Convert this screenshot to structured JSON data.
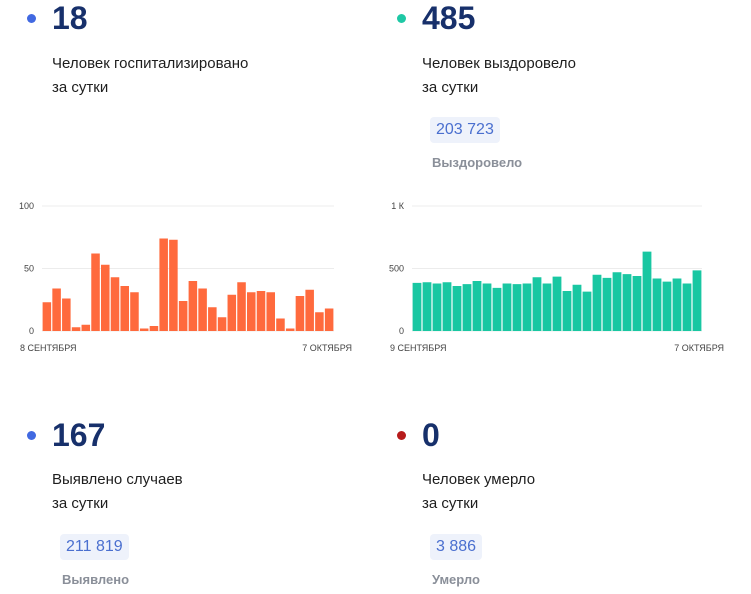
{
  "cards": [
    {
      "value": "18",
      "desc_line1": "Человек госпитализировано",
      "desc_line2": "за сутки",
      "dot_color": "#4169e1"
    },
    {
      "value": "485",
      "desc_line1": "Человек выздоровело",
      "desc_line2": "за сутки",
      "dot_color": "#1ec8a5",
      "total": "203 723",
      "total_label": "Выздоровело"
    },
    {
      "value": "167",
      "desc_line1": "Выявлено случаев",
      "desc_line2": "за сутки",
      "dot_color": "#4169e1",
      "total": "211 819",
      "total_label": "Выявлено"
    },
    {
      "value": "0",
      "desc_line1": "Человек умерло",
      "desc_line2": "за сутки",
      "dot_color": "#b71c1c",
      "total": "3 886",
      "total_label": "Умерло"
    }
  ],
  "chart_data": [
    {
      "type": "bar",
      "color": "#ff6a3d",
      "ylim": [
        0,
        100
      ],
      "yticks": [
        "100",
        "50",
        "0"
      ],
      "x_start_label": "8 СЕНТЯБРЯ",
      "x_end_label": "7 ОКТЯБРЯ",
      "values": [
        23,
        34,
        26,
        3,
        5,
        62,
        53,
        43,
        36,
        31,
        2,
        4,
        74,
        73,
        24,
        40,
        34,
        19,
        11,
        29,
        39,
        31,
        32,
        31,
        10,
        2,
        28,
        33,
        15,
        18
      ]
    },
    {
      "type": "bar",
      "color": "#19c7a2",
      "ylim": [
        0,
        1000
      ],
      "yticks": [
        "1 К",
        "500",
        "0"
      ],
      "x_start_label": "9 СЕНТЯБРЯ",
      "x_end_label": "7 ОКТЯБРЯ",
      "values": [
        385,
        390,
        380,
        390,
        360,
        375,
        400,
        380,
        345,
        380,
        375,
        380,
        430,
        380,
        435,
        320,
        370,
        315,
        450,
        425,
        470,
        455,
        440,
        635,
        420,
        395,
        420,
        380,
        485
      ]
    }
  ]
}
